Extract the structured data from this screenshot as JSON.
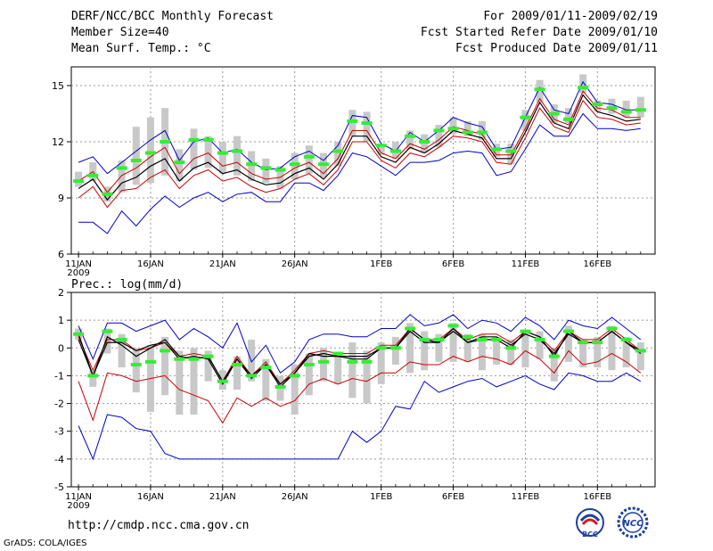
{
  "header": {
    "title": "DERF/NCC/BCC Monthly Forecast",
    "member_size": "Member Size=40",
    "variable_top": "Mean Surf. Temp.: °C",
    "forecast_period": "For 2009/01/11-2009/02/19",
    "start_date": "Fcst Started Refer Date 2009/01/10",
    "produced_date": "Fcst Produced Date 2009/01/11"
  },
  "footer": {
    "url": "http://cmdp.ncc.cma.gov.cn",
    "grads": "GrADS: COLA/IGES",
    "logo_bcc": "BCC",
    "logo_ncc": "NCC"
  },
  "colors": {
    "box": "#c8c8c8",
    "mean": "#000000",
    "inner": "#cc0000",
    "outer": "#0000cc",
    "median": "#33ee33"
  },
  "chart_data": [
    {
      "type": "line",
      "title": "Mean Surf. Temp.: °C",
      "ylim": [
        6,
        16
      ],
      "yticks": [
        6,
        9,
        12,
        15
      ],
      "xticks": [
        {
          "day": 1,
          "label": "11JAN"
        },
        {
          "day": 6,
          "label": "16JAN"
        },
        {
          "day": 11,
          "label": "21JAN"
        },
        {
          "day": 16,
          "label": "26JAN"
        },
        {
          "day": 22,
          "label": "1FEB"
        },
        {
          "day": 27,
          "label": "6FEB"
        },
        {
          "day": 32,
          "label": "11FEB"
        },
        {
          "day": 37,
          "label": "16FEB"
        }
      ],
      "year_label": "2009",
      "x": [
        1,
        2,
        3,
        4,
        5,
        6,
        7,
        8,
        9,
        10,
        11,
        12,
        13,
        14,
        15,
        16,
        17,
        18,
        19,
        20,
        21,
        22,
        23,
        24,
        25,
        26,
        27,
        28,
        29,
        30,
        31,
        32,
        33,
        34,
        35,
        36,
        37,
        38,
        39,
        40
      ],
      "series": [
        {
          "name": "upper",
          "role": "outer",
          "values": [
            10.9,
            11.2,
            10.3,
            10.9,
            11.5,
            12.1,
            12.6,
            11.0,
            12.0,
            12.2,
            11.4,
            11.6,
            10.9,
            10.5,
            10.6,
            11.2,
            11.5,
            11.0,
            11.8,
            13.4,
            13.3,
            11.9,
            11.5,
            12.5,
            12.0,
            12.6,
            13.3,
            13.0,
            12.8,
            11.6,
            11.7,
            13.3,
            14.9,
            13.7,
            13.5,
            15.2,
            14.1,
            14.0,
            13.7,
            13.7
          ]
        },
        {
          "name": "inner-upper",
          "role": "inner",
          "values": [
            9.9,
            10.4,
            9.3,
            10.2,
            10.6,
            11.2,
            11.7,
            10.3,
            11.1,
            11.4,
            10.7,
            10.9,
            10.3,
            10.0,
            10.1,
            10.6,
            10.9,
            10.3,
            11.1,
            12.6,
            12.6,
            11.4,
            11.1,
            11.9,
            11.6,
            12.1,
            12.8,
            12.6,
            12.4,
            11.3,
            11.3,
            12.7,
            14.3,
            13.2,
            12.9,
            14.7,
            13.8,
            13.7,
            13.3,
            13.3
          ]
        },
        {
          "name": "mean",
          "role": "mean",
          "values": [
            9.5,
            10.0,
            8.9,
            9.8,
            10.1,
            10.7,
            11.1,
            9.9,
            10.6,
            10.9,
            10.3,
            10.5,
            10.0,
            9.7,
            9.8,
            10.3,
            10.6,
            10.0,
            10.8,
            12.3,
            12.3,
            11.2,
            10.9,
            11.7,
            11.4,
            11.9,
            12.6,
            12.4,
            12.2,
            11.1,
            11.1,
            12.5,
            14.1,
            13.0,
            12.7,
            14.5,
            13.6,
            13.4,
            13.1,
            13.2
          ]
        },
        {
          "name": "inner-lower",
          "role": "inner",
          "values": [
            9.0,
            9.6,
            8.5,
            9.4,
            9.5,
            10.1,
            10.5,
            9.5,
            10.2,
            10.5,
            9.9,
            10.1,
            9.6,
            9.3,
            9.5,
            10.0,
            10.3,
            9.7,
            10.5,
            12.0,
            12.0,
            11.0,
            10.6,
            11.4,
            11.2,
            11.7,
            12.3,
            12.2,
            12.0,
            10.9,
            10.8,
            12.2,
            13.8,
            12.8,
            12.5,
            14.2,
            13.3,
            13.2,
            12.9,
            13.0
          ]
        },
        {
          "name": "lower",
          "role": "outer",
          "values": [
            7.7,
            7.7,
            7.1,
            8.3,
            7.5,
            8.4,
            9.1,
            8.5,
            9.0,
            9.3,
            8.8,
            9.2,
            9.3,
            8.8,
            8.8,
            9.8,
            9.8,
            9.4,
            10.2,
            11.4,
            11.2,
            10.7,
            10.2,
            10.9,
            10.9,
            11.0,
            11.4,
            11.5,
            11.4,
            10.2,
            10.4,
            11.6,
            12.9,
            12.3,
            12.3,
            13.5,
            12.7,
            12.7,
            12.6,
            12.7
          ]
        }
      ],
      "boxes": [
        [
          9.6,
          10.4
        ],
        [
          9.9,
          10.9
        ],
        [
          8.8,
          9.6
        ],
        [
          9.3,
          11.0
        ],
        [
          9.7,
          12.8
        ],
        [
          9.8,
          13.3
        ],
        [
          10.2,
          13.8
        ],
        [
          9.9,
          11.6
        ],
        [
          10.5,
          12.7
        ],
        [
          10.6,
          12.3
        ],
        [
          10.3,
          12.0
        ],
        [
          10.2,
          12.3
        ],
        [
          9.9,
          11.5
        ],
        [
          9.8,
          11.1
        ],
        [
          9.5,
          10.7
        ],
        [
          10.0,
          11.4
        ],
        [
          10.3,
          11.8
        ],
        [
          10.1,
          11.4
        ],
        [
          10.7,
          12.0
        ],
        [
          12.3,
          13.7
        ],
        [
          12.0,
          13.6
        ],
        [
          11.3,
          11.9
        ],
        [
          11.1,
          12.0
        ],
        [
          11.6,
          12.6
        ],
        [
          11.4,
          12.4
        ],
        [
          11.7,
          12.9
        ],
        [
          12.4,
          13.3
        ],
        [
          12.3,
          13.1
        ],
        [
          12.1,
          13.1
        ],
        [
          11.2,
          11.9
        ],
        [
          10.8,
          11.9
        ],
        [
          12.6,
          13.7
        ],
        [
          14.1,
          15.3
        ],
        [
          13.0,
          14.0
        ],
        [
          13.0,
          13.8
        ],
        [
          14.6,
          15.6
        ],
        [
          13.6,
          14.2
        ],
        [
          13.5,
          14.3
        ],
        [
          13.3,
          14.2
        ],
        [
          13.3,
          14.4
        ]
      ],
      "medians": [
        9.9,
        10.2,
        9.2,
        10.6,
        11.0,
        11.4,
        12.0,
        10.9,
        12.1,
        12.1,
        11.4,
        11.5,
        10.8,
        10.6,
        10.5,
        10.8,
        11.2,
        10.8,
        11.5,
        13.1,
        13.0,
        11.8,
        11.5,
        12.3,
        12.0,
        12.6,
        12.7,
        12.5,
        12.5,
        11.6,
        11.5,
        13.3,
        14.8,
        13.5,
        13.2,
        14.9,
        14.0,
        13.8,
        13.6,
        13.7
      ]
    },
    {
      "type": "line",
      "title": "Prec.: log(mm/d)",
      "ylim": [
        -5,
        2
      ],
      "yticks": [
        -5,
        -4,
        -3,
        -2,
        -1,
        0,
        1,
        2
      ],
      "xticks": [
        {
          "day": 1,
          "label": "11JAN"
        },
        {
          "day": 6,
          "label": "16JAN"
        },
        {
          "day": 11,
          "label": "21JAN"
        },
        {
          "day": 16,
          "label": "26JAN"
        },
        {
          "day": 22,
          "label": "1FEB"
        },
        {
          "day": 27,
          "label": "6FEB"
        },
        {
          "day": 32,
          "label": "11FEB"
        },
        {
          "day": 37,
          "label": "16FEB"
        }
      ],
      "year_label": "2009",
      "x": [
        1,
        2,
        3,
        4,
        5,
        6,
        7,
        8,
        9,
        10,
        11,
        12,
        13,
        14,
        15,
        16,
        17,
        18,
        19,
        20,
        21,
        22,
        23,
        24,
        25,
        26,
        27,
        28,
        29,
        30,
        31,
        32,
        33,
        34,
        35,
        36,
        37,
        38,
        39,
        40
      ],
      "series": [
        {
          "name": "upper",
          "role": "outer",
          "values": [
            0.8,
            -0.4,
            0.9,
            0.9,
            0.6,
            0.8,
            1.0,
            0.3,
            0.7,
            0.4,
            0.0,
            0.9,
            -0.5,
            0.1,
            -0.9,
            -0.5,
            0.3,
            0.5,
            0.5,
            0.4,
            0.4,
            0.7,
            0.7,
            1.2,
            0.8,
            0.9,
            1.2,
            0.7,
            1.0,
            0.9,
            0.6,
            1.1,
            0.8,
            0.3,
            1.0,
            0.8,
            0.7,
            1.1,
            0.7,
            0.3
          ]
        },
        {
          "name": "inner-upper",
          "role": "inner",
          "values": [
            0.4,
            -0.8,
            0.3,
            0.3,
            -0.1,
            0.0,
            0.2,
            -0.3,
            -0.2,
            -0.3,
            -1.2,
            -0.3,
            -1.0,
            -0.5,
            -1.3,
            -0.8,
            -0.2,
            -0.1,
            -0.2,
            -0.2,
            -0.2,
            0.1,
            0.1,
            0.7,
            0.3,
            0.3,
            0.7,
            0.3,
            0.5,
            0.5,
            0.2,
            0.6,
            0.4,
            -0.1,
            0.6,
            0.3,
            0.3,
            0.7,
            0.3,
            -0.1
          ]
        },
        {
          "name": "mean",
          "role": "mean",
          "values": [
            0.3,
            -1.0,
            0.2,
            0.2,
            -0.1,
            0.1,
            0.2,
            -0.4,
            -0.3,
            -0.4,
            -1.3,
            -0.4,
            -1.1,
            -0.6,
            -1.4,
            -0.9,
            -0.3,
            -0.2,
            -0.3,
            -0.3,
            -0.3,
            0.0,
            0.0,
            0.6,
            0.2,
            0.2,
            0.6,
            0.2,
            0.4,
            0.4,
            0.1,
            0.5,
            0.3,
            -0.2,
            0.5,
            0.2,
            0.2,
            0.6,
            0.2,
            -0.2
          ]
        },
        {
          "name": "inner-lower",
          "role": "inner",
          "values": [
            -1.2,
            -2.6,
            -0.9,
            -1.0,
            -1.2,
            -1.1,
            -1.0,
            -1.5,
            -1.7,
            -1.9,
            -2.7,
            -1.8,
            -2.1,
            -1.8,
            -2.1,
            -1.9,
            -1.3,
            -1.1,
            -1.3,
            -1.1,
            -1.2,
            -0.9,
            -0.9,
            -0.5,
            -0.6,
            -0.6,
            -0.3,
            -0.5,
            -0.3,
            -0.4,
            -0.6,
            -0.1,
            -0.4,
            -0.9,
            -0.1,
            -0.6,
            -0.5,
            -0.2,
            -0.5,
            -0.9
          ]
        },
        {
          "name": "lower",
          "role": "outer",
          "values": [
            -2.8,
            -4.0,
            -2.4,
            -2.5,
            -2.9,
            -3.0,
            -3.8,
            -4.0,
            -4.0,
            -4.0,
            -4.0,
            -4.0,
            -4.0,
            -4.0,
            -4.0,
            -4.0,
            -4.0,
            -4.0,
            -4.0,
            -3.0,
            -3.4,
            -3.0,
            -2.1,
            -2.2,
            -1.2,
            -1.6,
            -1.4,
            -1.2,
            -1.1,
            -1.4,
            -1.2,
            -1.0,
            -1.3,
            -1.5,
            -0.9,
            -1.0,
            -1.2,
            -1.2,
            -0.9,
            -1.2
          ]
        },
        {
          "name": "median-line",
          "role": "mean",
          "values": [
            0.5,
            -1.0,
            0.4,
            0.1,
            -0.3,
            0.0,
            0.3,
            -0.3,
            -0.4,
            -0.3,
            -1.2,
            -0.4,
            -1.0,
            -0.6,
            -1.3,
            -0.9,
            -0.2,
            -0.3,
            -0.3,
            -0.4,
            -0.4,
            0.0,
            0.0,
            0.7,
            0.3,
            0.2,
            0.7,
            0.2,
            0.3,
            0.3,
            0.0,
            0.6,
            0.4,
            -0.3,
            0.6,
            0.2,
            0.2,
            0.6,
            0.2,
            -0.1
          ]
        }
      ],
      "boxes": [
        [
          0.3,
          0.7
        ],
        [
          -1.4,
          -0.8
        ],
        [
          -0.2,
          0.7
        ],
        [
          -0.7,
          0.5
        ],
        [
          -1.6,
          0.0
        ],
        [
          -2.3,
          0.1
        ],
        [
          -1.7,
          0.4
        ],
        [
          -2.4,
          -0.1
        ],
        [
          -2.4,
          0.0
        ],
        [
          -1.2,
          -0.1
        ],
        [
          -1.5,
          -0.8
        ],
        [
          -1.5,
          -0.3
        ],
        [
          -1.2,
          0.3
        ],
        [
          -1.9,
          -0.4
        ],
        [
          -1.9,
          -1.0
        ],
        [
          -2.4,
          -0.6
        ],
        [
          -1.7,
          -0.2
        ],
        [
          -1.2,
          0.0
        ],
        [
          -1.3,
          -0.2
        ],
        [
          -1.8,
          0.2
        ],
        [
          -2.0,
          -0.1
        ],
        [
          -1.3,
          0.2
        ],
        [
          -0.6,
          0.4
        ],
        [
          -0.9,
          0.9
        ],
        [
          -0.8,
          0.6
        ],
        [
          -0.5,
          0.5
        ],
        [
          -0.5,
          0.9
        ],
        [
          -0.5,
          0.5
        ],
        [
          -0.8,
          0.5
        ],
        [
          -0.6,
          0.4
        ],
        [
          -0.6,
          0.3
        ],
        [
          -0.7,
          0.6
        ],
        [
          -0.4,
          0.6
        ],
        [
          -1.2,
          0.0
        ],
        [
          -0.5,
          0.8
        ],
        [
          -0.7,
          0.3
        ],
        [
          -0.7,
          0.4
        ],
        [
          -0.8,
          0.8
        ],
        [
          -0.7,
          0.4
        ],
        [
          -0.8,
          0.2
        ]
      ],
      "medians": [
        0.5,
        -1.0,
        0.6,
        0.3,
        -0.6,
        -0.5,
        -0.1,
        -0.4,
        -0.4,
        -0.3,
        -1.2,
        -0.6,
        -1.0,
        -0.7,
        -1.4,
        -1.0,
        -0.6,
        -0.5,
        -0.2,
        -0.5,
        -0.5,
        0.0,
        0.0,
        0.7,
        0.3,
        0.3,
        0.8,
        0.4,
        0.3,
        0.3,
        0.0,
        0.6,
        0.3,
        -0.3,
        0.6,
        0.2,
        0.2,
        0.7,
        0.3,
        -0.1
      ]
    }
  ]
}
